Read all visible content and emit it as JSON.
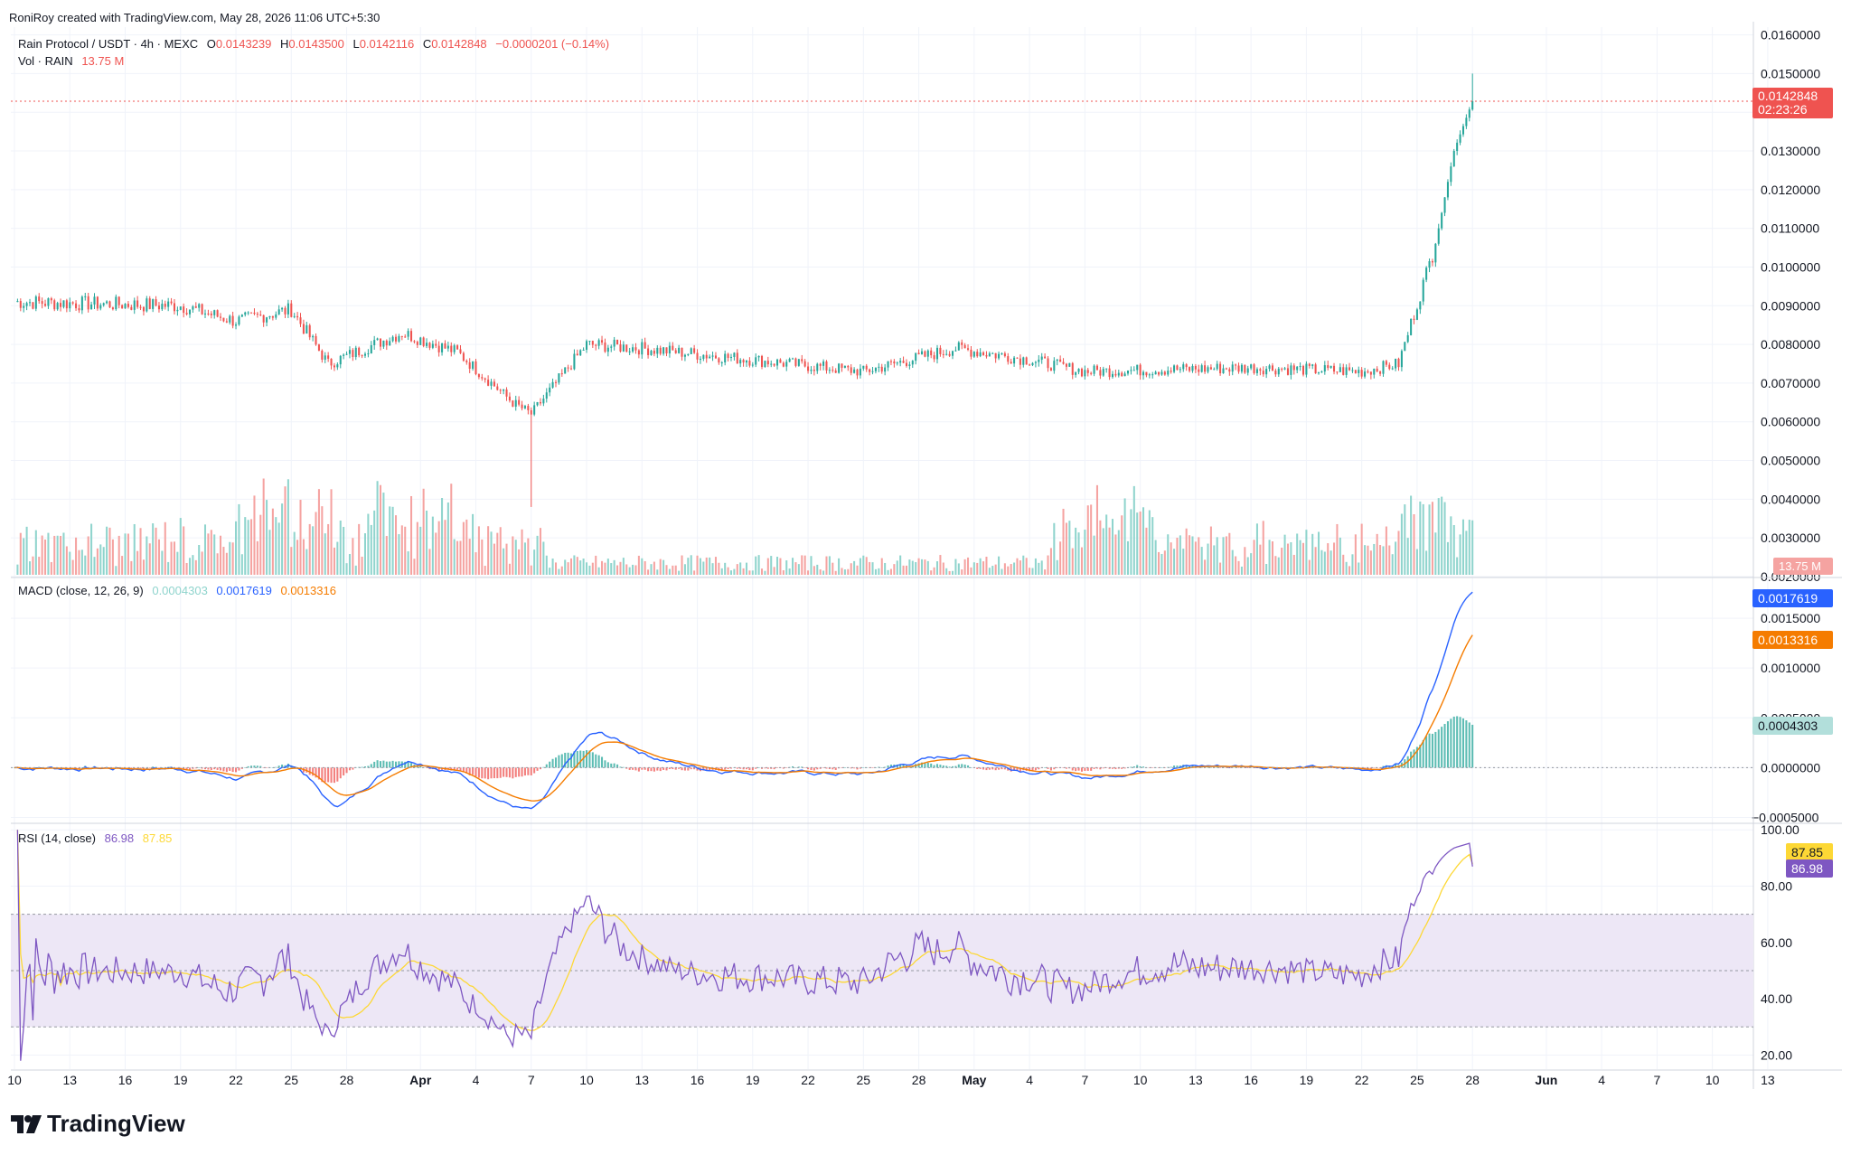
{
  "credit": "RoniRoy created with TradingView.com, May 28, 2026 11:06 UTC+5:30",
  "legend": {
    "symbol": "Rain Protocol / USDT · 4h · MEXC",
    "o_label": "O",
    "o": "0.0143239",
    "h_label": "H",
    "h": "0.0143500",
    "l_label": "L",
    "l": "0.0142116",
    "c_label": "C",
    "c": "0.0142848",
    "change": "−0.0000201 (−0.14%)",
    "vol_label": "Vol · RAIN",
    "vol_value": "13.75 M"
  },
  "macd_legend": {
    "label": "MACD (close, 12, 26, 9)",
    "hist": "0.0004303",
    "macd": "0.0017619",
    "signal": "0.0013316"
  },
  "rsi_legend": {
    "label": "RSI (14, close)",
    "rsi": "86.98",
    "ma": "87.85"
  },
  "price_tag": {
    "price": "0.0142848",
    "countdown": "02:23:26"
  },
  "vol_tag": "13.75 M",
  "macd_tags": {
    "macd": "0.0017619",
    "signal": "0.0013316",
    "hist": "0.0004303"
  },
  "rsi_tags": {
    "ma": "87.85",
    "rsi": "86.98"
  },
  "logo_text": "TradingView",
  "colors": {
    "up": "#26a69a",
    "down": "#ef5350",
    "vol_up": "#8fd4cd",
    "vol_down": "#f5a3a1",
    "macd": "#2962ff",
    "signal": "#f57c00",
    "rsi": "#7e57c2",
    "rsi_ma": "#fdd835",
    "rsi_band": "#ede7f6",
    "grid": "#f0f3fa",
    "axis_text": "#131722"
  },
  "chart_data": [
    {
      "type": "candlestick",
      "title": "Rain Protocol / USDT · 4h · MEXC",
      "price_axis_ticks": [
        "0.0160000",
        "0.0150000",
        "0.0140000",
        "0.0130000",
        "0.0120000",
        "0.0110000",
        "0.0100000",
        "0.0090000",
        "0.0080000",
        "0.0070000",
        "0.0060000",
        "0.0050000",
        "0.0040000",
        "0.0030000",
        "0.0020000"
      ],
      "ylim": [
        0.002,
        0.0162
      ],
      "date_axis_ticks": [
        "10",
        "13",
        "16",
        "19",
        "22",
        "25",
        "28",
        "Apr",
        "4",
        "7",
        "10",
        "13",
        "16",
        "19",
        "22",
        "25",
        "28",
        "May",
        "4",
        "7",
        "10",
        "13",
        "16",
        "19",
        "22",
        "25",
        "28",
        "Jun",
        "4",
        "7",
        "10",
        "13"
      ],
      "key_points": [
        {
          "date": "Mar 10",
          "price": 0.0091
        },
        {
          "date": "Mar 19",
          "price": 0.009
        },
        {
          "date": "Mar 22",
          "price": 0.0086
        },
        {
          "date": "Mar 25",
          "price": 0.0089
        },
        {
          "date": "Mar 27",
          "price": 0.0075
        },
        {
          "date": "Mar 31",
          "price": 0.0083
        },
        {
          "date": "Apr 3",
          "price": 0.0078
        },
        {
          "date": "Apr 6",
          "price": 0.0065
        },
        {
          "date": "Apr 7",
          "price": 0.0062,
          "low": 0.0038
        },
        {
          "date": "Apr 10",
          "price": 0.008
        },
        {
          "date": "Apr 13",
          "price": 0.0079
        },
        {
          "date": "Apr 19",
          "price": 0.0076
        },
        {
          "date": "Apr 25",
          "price": 0.0073
        },
        {
          "date": "Apr 30",
          "price": 0.0079
        },
        {
          "date": "May 4",
          "price": 0.0076
        },
        {
          "date": "May 7",
          "price": 0.0073
        },
        {
          "date": "May 16",
          "price": 0.0074
        },
        {
          "date": "May 22",
          "price": 0.0073
        },
        {
          "date": "May 24",
          "price": 0.0075
        },
        {
          "date": "May 26",
          "price": 0.0106
        },
        {
          "date": "May 27",
          "price": 0.013
        },
        {
          "date": "May 28",
          "price": 0.0142848,
          "high": 0.015
        }
      ],
      "last": {
        "open": 0.0143239,
        "high": 0.01435,
        "low": 0.0142116,
        "close": 0.0142848
      }
    },
    {
      "type": "bar",
      "title": "Vol · RAIN",
      "last_value": "13.75 M",
      "notable_spikes": [
        "Mar 25",
        "Apr 1",
        "May 8",
        "May 27"
      ]
    },
    {
      "type": "line",
      "title": "MACD (close, 12, 26, 9)",
      "axis_ticks": [
        "0.0015000",
        "0.0010000",
        "0.0005000",
        "0.0000000",
        "−0.0005000"
      ],
      "ylim": [
        -0.00055,
        0.0019
      ],
      "series": [
        {
          "name": "MACD",
          "last": 0.0017619
        },
        {
          "name": "Signal",
          "last": 0.0013316
        },
        {
          "name": "Histogram",
          "last": 0.0004303
        }
      ]
    },
    {
      "type": "line",
      "title": "RSI (14, close)",
      "axis_ticks": [
        "100.00",
        "80.00",
        "60.00",
        "40.00",
        "20.00"
      ],
      "ylim": [
        15,
        102
      ],
      "band": [
        30,
        70
      ],
      "series": [
        {
          "name": "RSI",
          "last": 86.98
        },
        {
          "name": "RSI MA",
          "last": 87.85
        }
      ]
    }
  ]
}
